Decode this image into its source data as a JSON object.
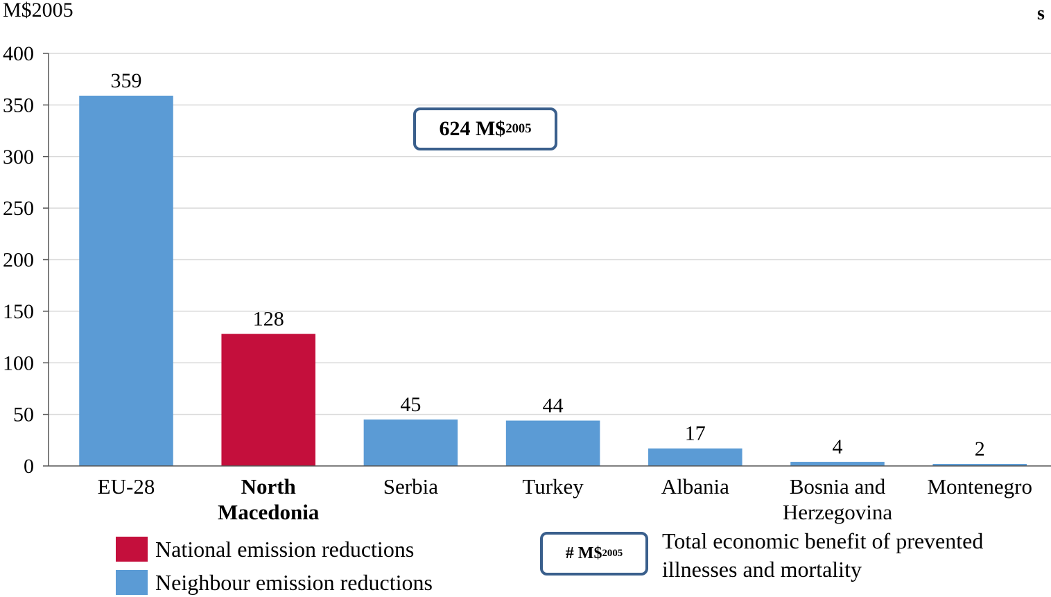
{
  "chart_data": {
    "type": "bar",
    "ylabel": "M$2005",
    "corner_mark": "s",
    "ylim": [
      0,
      400
    ],
    "yticks": [
      0,
      50,
      100,
      150,
      200,
      250,
      300,
      350,
      400
    ],
    "grid": true,
    "categories": [
      {
        "lines": [
          "EU-28"
        ],
        "bold": false
      },
      {
        "lines": [
          "North",
          "Macedonia"
        ],
        "bold": true
      },
      {
        "lines": [
          "Serbia"
        ],
        "bold": false
      },
      {
        "lines": [
          "Turkey"
        ],
        "bold": false
      },
      {
        "lines": [
          "Albania"
        ],
        "bold": false
      },
      {
        "lines": [
          "Bosnia and",
          "Herzegovina"
        ],
        "bold": false
      },
      {
        "lines": [
          "Montenegro"
        ],
        "bold": false
      }
    ],
    "values": [
      359,
      128,
      45,
      44,
      17,
      4,
      2
    ],
    "bar_types": [
      "neighbour",
      "national",
      "neighbour",
      "neighbour",
      "neighbour",
      "neighbour",
      "neighbour"
    ],
    "colors": {
      "national": "#c40f3c",
      "neighbour": "#5b9bd5",
      "box_border": "#3a5f8c"
    },
    "total": {
      "value": "624 M$",
      "subscript": "2005"
    },
    "legend": {
      "national": "National emission reductions",
      "neighbour": "Neighbour emission reductions",
      "box_label": "# M$",
      "box_subscript": "2005",
      "box_desc_line1": "Total economic benefit of prevented",
      "box_desc_line2": "illnesses and mortality"
    }
  }
}
